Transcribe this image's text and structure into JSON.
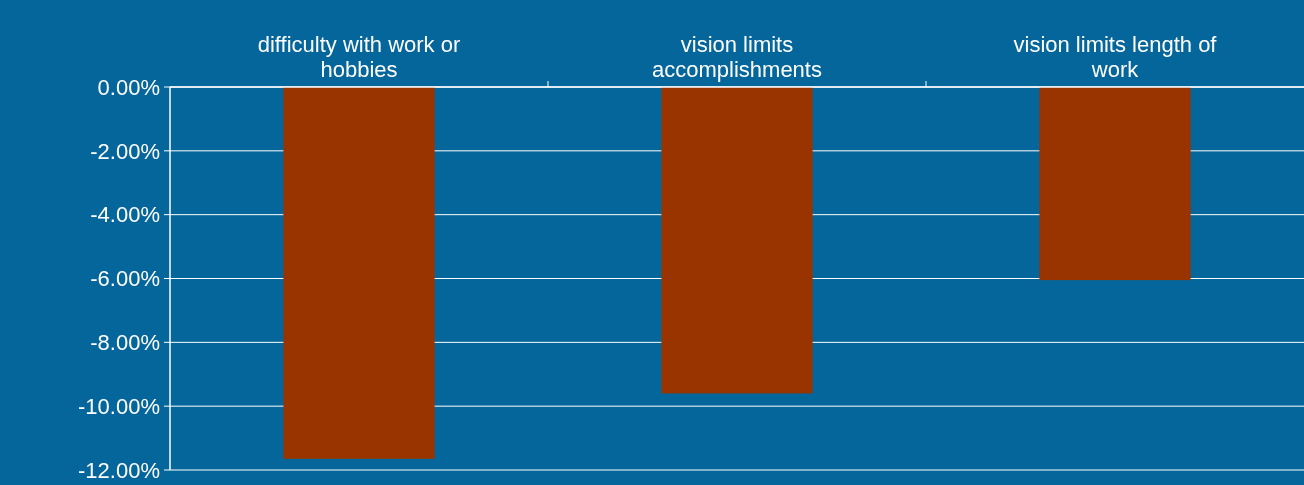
{
  "chart_data": {
    "type": "bar",
    "categories": [
      "difficulty with work or hobbies",
      "vision limits accomplishments",
      "vision limits length of work"
    ],
    "values": [
      -11.65,
      -9.6,
      -6.05
    ],
    "color": "#993300",
    "ylim": [
      -12,
      0
    ],
    "yticks": [
      {
        "value": 0,
        "label": "0.00%"
      },
      {
        "value": -2,
        "label": "-2.00%"
      },
      {
        "value": -4,
        "label": "-4.00%"
      },
      {
        "value": -6,
        "label": "-6.00%"
      },
      {
        "value": -8,
        "label": "-8.00%"
      },
      {
        "value": -10,
        "label": "-10.00%"
      },
      {
        "value": -12,
        "label": "-12.00%"
      }
    ],
    "grid": "y"
  }
}
